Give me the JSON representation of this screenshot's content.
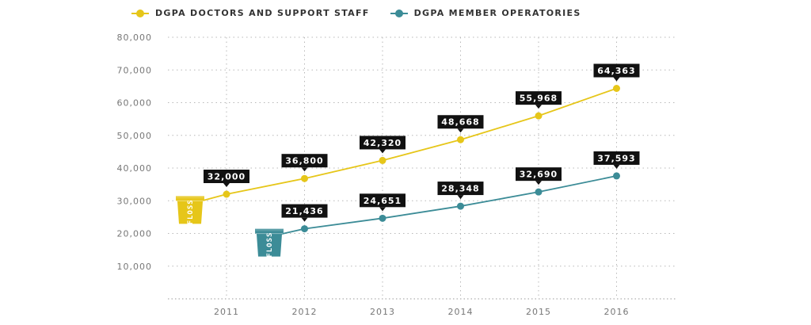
{
  "colors": {
    "series1": "#E6C619",
    "series2": "#3C8C97",
    "label_bg": "#111111",
    "grid": "#b8b8b8"
  },
  "legend": [
    {
      "label": "DGPA DOCTORS AND SUPPORT STAFF",
      "color": "#E6C619"
    },
    {
      "label": "DGPA MEMBER OPERATORIES",
      "color": "#3C8C97"
    }
  ],
  "floss_label": "FLOSS",
  "chart_data": {
    "type": "line",
    "categories": [
      "2011",
      "2012",
      "2013",
      "2014",
      "2015",
      "2016"
    ],
    "ylim": [
      0,
      80000
    ],
    "yticks": [
      "10,000",
      "20,000",
      "30,000",
      "40,000",
      "50,000",
      "60,000",
      "70,000",
      "80,000"
    ],
    "series": [
      {
        "name": "DGPA DOCTORS AND SUPPORT STAFF",
        "x": [
          "2011",
          "2012",
          "2013",
          "2014",
          "2015",
          "2016"
        ],
        "values": [
          32000,
          36800,
          42320,
          48668,
          55968,
          64363
        ],
        "labels": [
          "32,000",
          "36,800",
          "42,320",
          "48,668",
          "55,968",
          "64,363"
        ],
        "start_value": 29000
      },
      {
        "name": "DGPA MEMBER OPERATORIES",
        "x": [
          "2012",
          "2013",
          "2014",
          "2015",
          "2016"
        ],
        "values": [
          21436,
          24651,
          28348,
          32690,
          37593
        ],
        "labels": [
          "21,436",
          "24,651",
          "28,348",
          "32,690",
          "37,593"
        ],
        "start_value": 19000
      }
    ],
    "title": "",
    "xlabel": "",
    "ylabel": "",
    "grid": true,
    "legend_position": "top-left"
  }
}
